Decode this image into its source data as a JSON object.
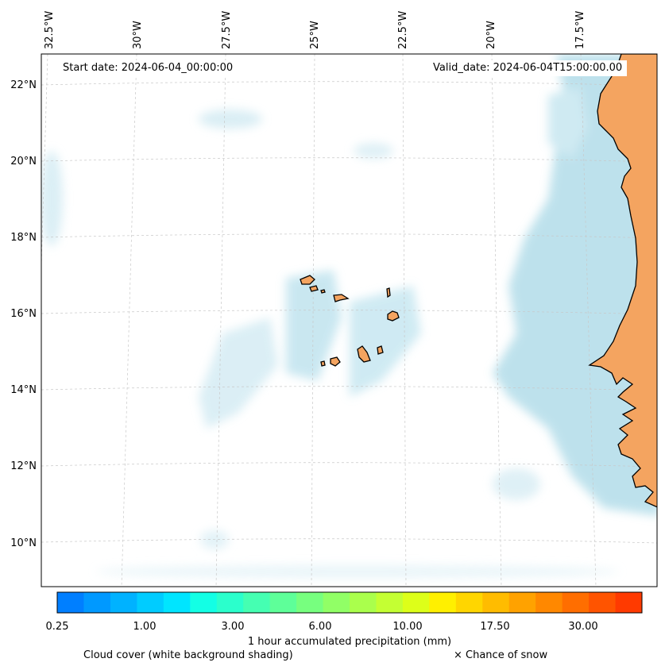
{
  "map": {
    "start_date": "Start date: 2024-06-04_00:00:00",
    "valid_date": "Valid_date: 2024-06-04T15:00:00.00",
    "lon_labels": [
      "32.5°W",
      "30°W",
      "27.5°W",
      "25°W",
      "22.5°W",
      "20°W",
      "17.5°W"
    ],
    "lat_labels": [
      "22°N",
      "20°N",
      "18°N",
      "16°N",
      "14°N",
      "12°N",
      "10°N"
    ],
    "colors": {
      "land": "#f4a460",
      "cloud": "#a8d8e6",
      "grid": "#c8c8c8"
    }
  },
  "colorbar": {
    "title": "1 hour accumulated precipitation (mm)",
    "tick_labels": [
      "0.25",
      "1.00",
      "3.00",
      "6.00",
      "10.00",
      "17.50",
      "30.00"
    ],
    "colors": [
      "#007fff",
      "#0099ff",
      "#00b2ff",
      "#00ccff",
      "#00e5ff",
      "#13ffe5",
      "#2bffcc",
      "#45ffb2",
      "#5eff99",
      "#77ff7f",
      "#91ff66",
      "#aaff4c",
      "#c4ff33",
      "#ddff19",
      "#fff000",
      "#ffd600",
      "#ffbc00",
      "#ffa200",
      "#ff8800",
      "#ff6e00",
      "#ff5400",
      "#ff3a00"
    ]
  },
  "captions": {
    "cloud": "Cloud cover (white background shading)",
    "snow": "× Chance of snow"
  }
}
